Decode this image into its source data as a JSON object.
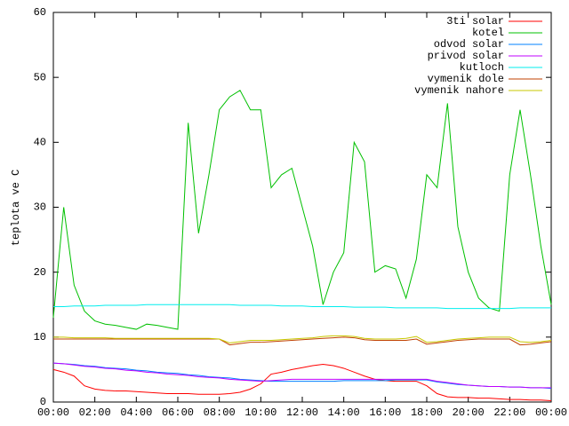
{
  "chart_data": {
    "type": "line",
    "ylabel": "teplota ve C",
    "x": [
      0,
      0.5,
      1,
      1.5,
      2,
      2.5,
      3,
      3.5,
      4,
      4.5,
      5,
      5.5,
      6,
      6.5,
      7,
      7.5,
      8,
      8.5,
      9,
      9.5,
      10,
      10.5,
      11,
      11.5,
      12,
      12.5,
      13,
      13.5,
      14,
      14.5,
      15,
      15.5,
      16,
      16.5,
      17,
      17.5,
      18,
      18.5,
      19,
      19.5,
      20,
      20.5,
      21,
      21.5,
      22,
      22.5,
      23,
      23.5,
      24
    ],
    "xlim": [
      0,
      24
    ],
    "xticks": [
      {
        "value": 0,
        "label": "00:00"
      },
      {
        "value": 2,
        "label": "02:00"
      },
      {
        "value": 4,
        "label": "04:00"
      },
      {
        "value": 6,
        "label": "06:00"
      },
      {
        "value": 8,
        "label": "08:00"
      },
      {
        "value": 10,
        "label": "10:00"
      },
      {
        "value": 12,
        "label": "12:00"
      },
      {
        "value": 14,
        "label": "14:00"
      },
      {
        "value": 16,
        "label": "16:00"
      },
      {
        "value": 18,
        "label": "18:00"
      },
      {
        "value": 20,
        "label": "20:00"
      },
      {
        "value": 22,
        "label": "22:00"
      },
      {
        "value": 24,
        "label": "00:00"
      }
    ],
    "ylim": [
      0,
      60
    ],
    "yticks": [
      0,
      10,
      20,
      30,
      40,
      50,
      60
    ],
    "legend": "top-right",
    "series": [
      {
        "name": "3ti solar",
        "color": "#ff0000",
        "values": [
          5,
          4.6,
          4,
          2.5,
          2,
          1.8,
          1.7,
          1.7,
          1.6,
          1.5,
          1.4,
          1.3,
          1.3,
          1.3,
          1.2,
          1.2,
          1.2,
          1.3,
          1.5,
          2,
          2.8,
          4.3,
          4.6,
          5,
          5.3,
          5.6,
          5.8,
          5.6,
          5.2,
          4.6,
          4,
          3.5,
          3.3,
          3.2,
          3.2,
          3.2,
          2.5,
          1.3,
          0.8,
          0.7,
          0.7,
          0.6,
          0.6,
          0.5,
          0.4,
          0.4,
          0.3,
          0.3,
          0.2
        ]
      },
      {
        "name": "kotel",
        "color": "#00c000",
        "values": [
          13,
          30,
          18,
          14,
          12.5,
          12,
          11.8,
          11.5,
          11.2,
          12,
          11.8,
          11.5,
          11.2,
          43,
          26,
          35,
          45,
          47,
          48,
          45,
          45,
          33,
          35,
          36,
          30,
          24,
          15,
          20,
          23,
          40,
          37,
          20,
          21,
          20.5,
          16,
          22,
          35,
          33,
          46,
          27,
          20,
          16,
          14.5,
          14,
          35,
          45,
          35,
          24,
          15
        ]
      },
      {
        "name": "odvod solar",
        "color": "#0080ff",
        "values": [
          6,
          5.9,
          5.8,
          5.6,
          5.5,
          5.3,
          5.2,
          5.1,
          4.9,
          4.8,
          4.6,
          4.5,
          4.4,
          4.2,
          4.1,
          3.9,
          3.8,
          3.7,
          3.5,
          3.4,
          3.3,
          3.2,
          3.2,
          3.2,
          3.2,
          3.2,
          3.2,
          3.2,
          3.3,
          3.3,
          3.3,
          3.3,
          3.3,
          3.4,
          3.4,
          3.4,
          3.4,
          3.1,
          2.9,
          2.7,
          2.6,
          2.5,
          2.4,
          2.4,
          2.3,
          2.3,
          2.2,
          2.2,
          2.1
        ]
      },
      {
        "name": "privod solar",
        "color": "#c000ff",
        "values": [
          6,
          5.9,
          5.7,
          5.5,
          5.4,
          5.2,
          5.1,
          4.9,
          4.8,
          4.6,
          4.5,
          4.3,
          4.2,
          4.1,
          3.9,
          3.8,
          3.7,
          3.5,
          3.4,
          3.3,
          3.2,
          3.3,
          3.4,
          3.5,
          3.5,
          3.5,
          3.5,
          3.5,
          3.5,
          3.5,
          3.5,
          3.5,
          3.5,
          3.5,
          3.5,
          3.5,
          3.5,
          3.2,
          3,
          2.8,
          2.6,
          2.5,
          2.4,
          2.4,
          2.3,
          2.3,
          2.2,
          2.2,
          2.2
        ]
      },
      {
        "name": "kutloch",
        "color": "#00eeee",
        "values": [
          14.7,
          14.7,
          14.8,
          14.8,
          14.8,
          14.9,
          14.9,
          14.9,
          14.9,
          15,
          15,
          15,
          15,
          15,
          15,
          15,
          15,
          15,
          14.9,
          14.9,
          14.9,
          14.9,
          14.8,
          14.8,
          14.8,
          14.7,
          14.7,
          14.7,
          14.7,
          14.6,
          14.6,
          14.6,
          14.6,
          14.5,
          14.5,
          14.5,
          14.5,
          14.5,
          14.4,
          14.4,
          14.4,
          14.4,
          14.4,
          14.4,
          14.4,
          14.5,
          14.5,
          14.5,
          14.5
        ]
      },
      {
        "name": "vymenik dole",
        "color": "#c04000",
        "values": [
          9.7,
          9.7,
          9.7,
          9.7,
          9.7,
          9.7,
          9.7,
          9.7,
          9.7,
          9.7,
          9.7,
          9.7,
          9.7,
          9.7,
          9.7,
          9.7,
          9.7,
          8.8,
          9,
          9.2,
          9.2,
          9.3,
          9.4,
          9.5,
          9.6,
          9.7,
          9.8,
          9.9,
          10,
          9.9,
          9.6,
          9.5,
          9.5,
          9.5,
          9.5,
          9.7,
          8.9,
          9.1,
          9.3,
          9.5,
          9.6,
          9.7,
          9.7,
          9.7,
          9.7,
          8.8,
          8.9,
          9.1,
          9.3
        ]
      },
      {
        "name": "vymenik nahore",
        "color": "#c8c800",
        "values": [
          10,
          10,
          9.9,
          9.9,
          9.9,
          9.9,
          9.8,
          9.8,
          9.8,
          9.8,
          9.8,
          9.8,
          9.8,
          9.8,
          9.8,
          9.8,
          9.7,
          9.1,
          9.3,
          9.5,
          9.5,
          9.5,
          9.6,
          9.7,
          9.8,
          9.9,
          10.1,
          10.2,
          10.2,
          10.1,
          9.8,
          9.7,
          9.7,
          9.7,
          9.8,
          10.1,
          9.2,
          9.3,
          9.5,
          9.7,
          9.8,
          9.9,
          10,
          10,
          10,
          9.3,
          9.2,
          9.3,
          9.5
        ]
      }
    ]
  }
}
